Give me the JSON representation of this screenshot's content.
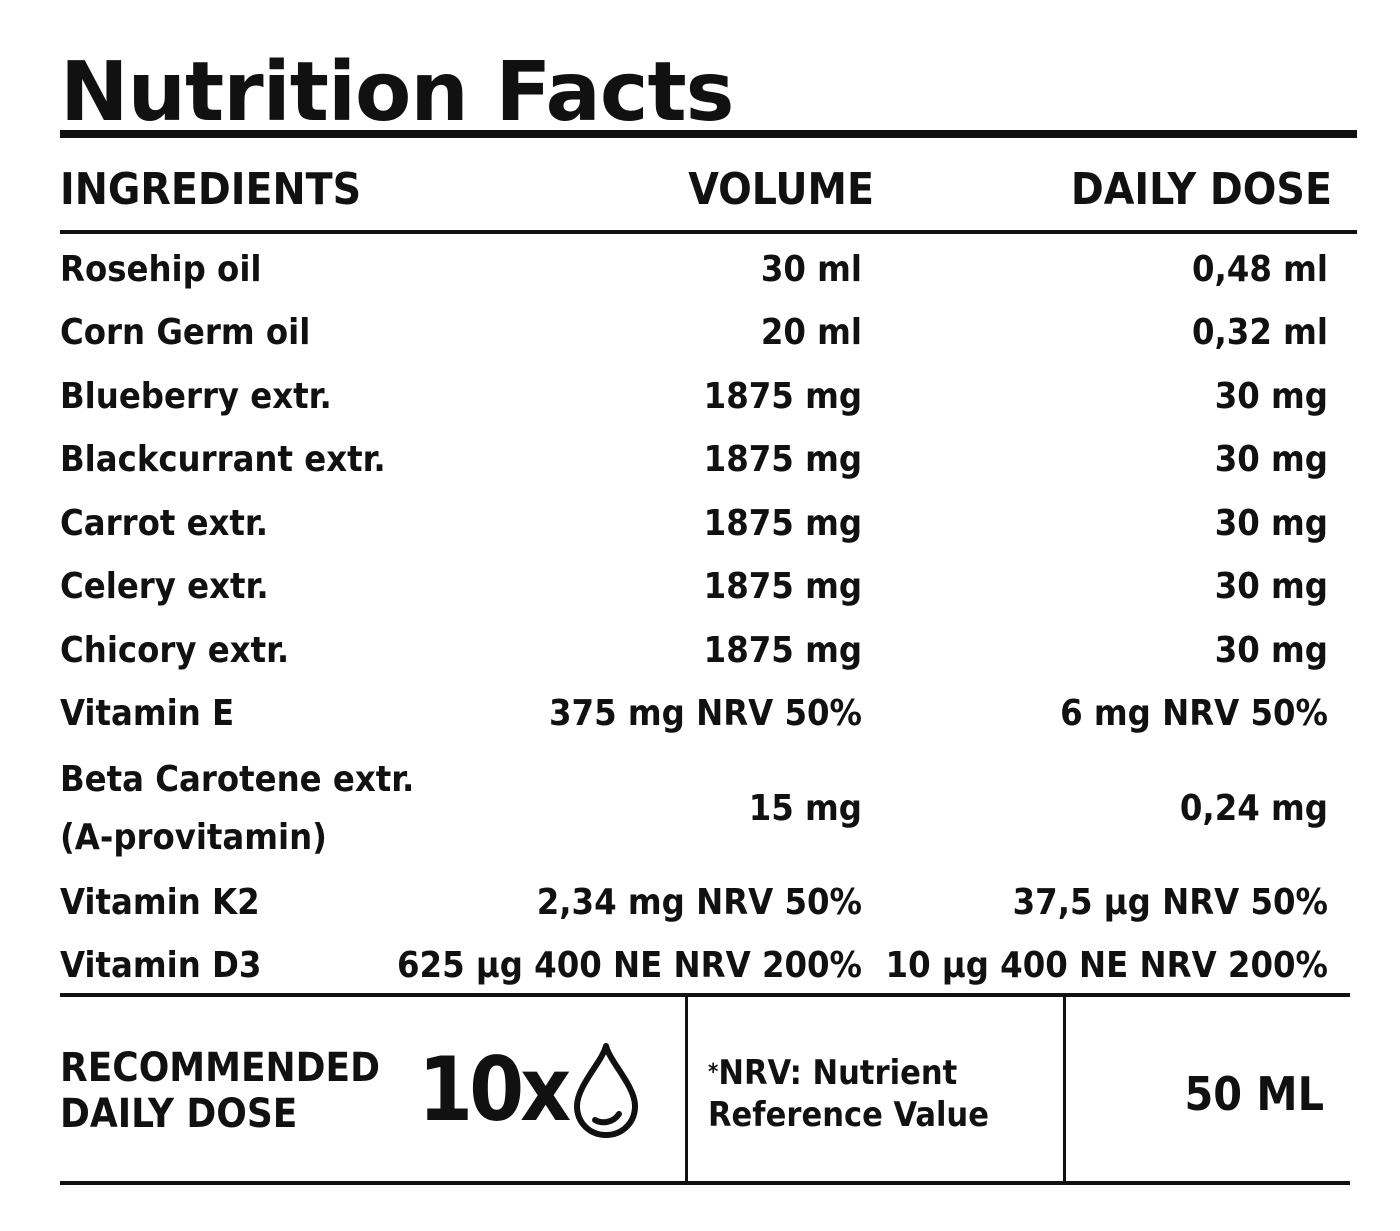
{
  "title": "Nutrition Facts",
  "columns": {
    "ingredients": "INGREDIENTS",
    "volume": "VOLUME",
    "daily_dose": "DAILY DOSE"
  },
  "rows": [
    {
      "ingredient": "Rosehip oil",
      "volume": "30 ml",
      "daily_dose": "0,48 ml"
    },
    {
      "ingredient": "Corn Germ oil",
      "volume": "20 ml",
      "daily_dose": "0,32 ml"
    },
    {
      "ingredient": "Blueberry extr.",
      "volume": "1875 mg",
      "daily_dose": "30 mg"
    },
    {
      "ingredient": "Blackcurrant extr.",
      "volume": "1875 mg",
      "daily_dose": "30 mg"
    },
    {
      "ingredient": "Carrot extr.",
      "volume": "1875 mg",
      "daily_dose": "30 mg"
    },
    {
      "ingredient": "Celery extr.",
      "volume": "1875 mg",
      "daily_dose": "30 mg"
    },
    {
      "ingredient": "Chicory extr.",
      "volume": "1875 mg",
      "daily_dose": "30 mg"
    },
    {
      "ingredient": "Vitamin E",
      "volume": "375 mg NRV 50%",
      "daily_dose": "6 mg NRV 50%"
    },
    {
      "ingredient_line1": "Beta Carotene extr.",
      "ingredient_line2": "(A-provitamin)",
      "volume": "15 mg",
      "daily_dose": "0,24 mg"
    },
    {
      "ingredient": "Vitamin K2",
      "volume": "2,34 mg NRV 50%",
      "daily_dose": "37,5 µg NRV 50%"
    },
    {
      "ingredient": "Vitamin D3",
      "volume": "625 µg 400 NE NRV 200%",
      "daily_dose": "10 µg 400 NE NRV 200%"
    }
  ],
  "footer": {
    "label_line1": "RECOMMENDED",
    "label_line2": "DAILY DOSE",
    "dose_count": "10x",
    "dose_icon": "drop-icon",
    "note_star": "*",
    "note_line1": "NRV: Nutrient",
    "note_line2": "Reference Value",
    "total_volume": "50 ML"
  }
}
